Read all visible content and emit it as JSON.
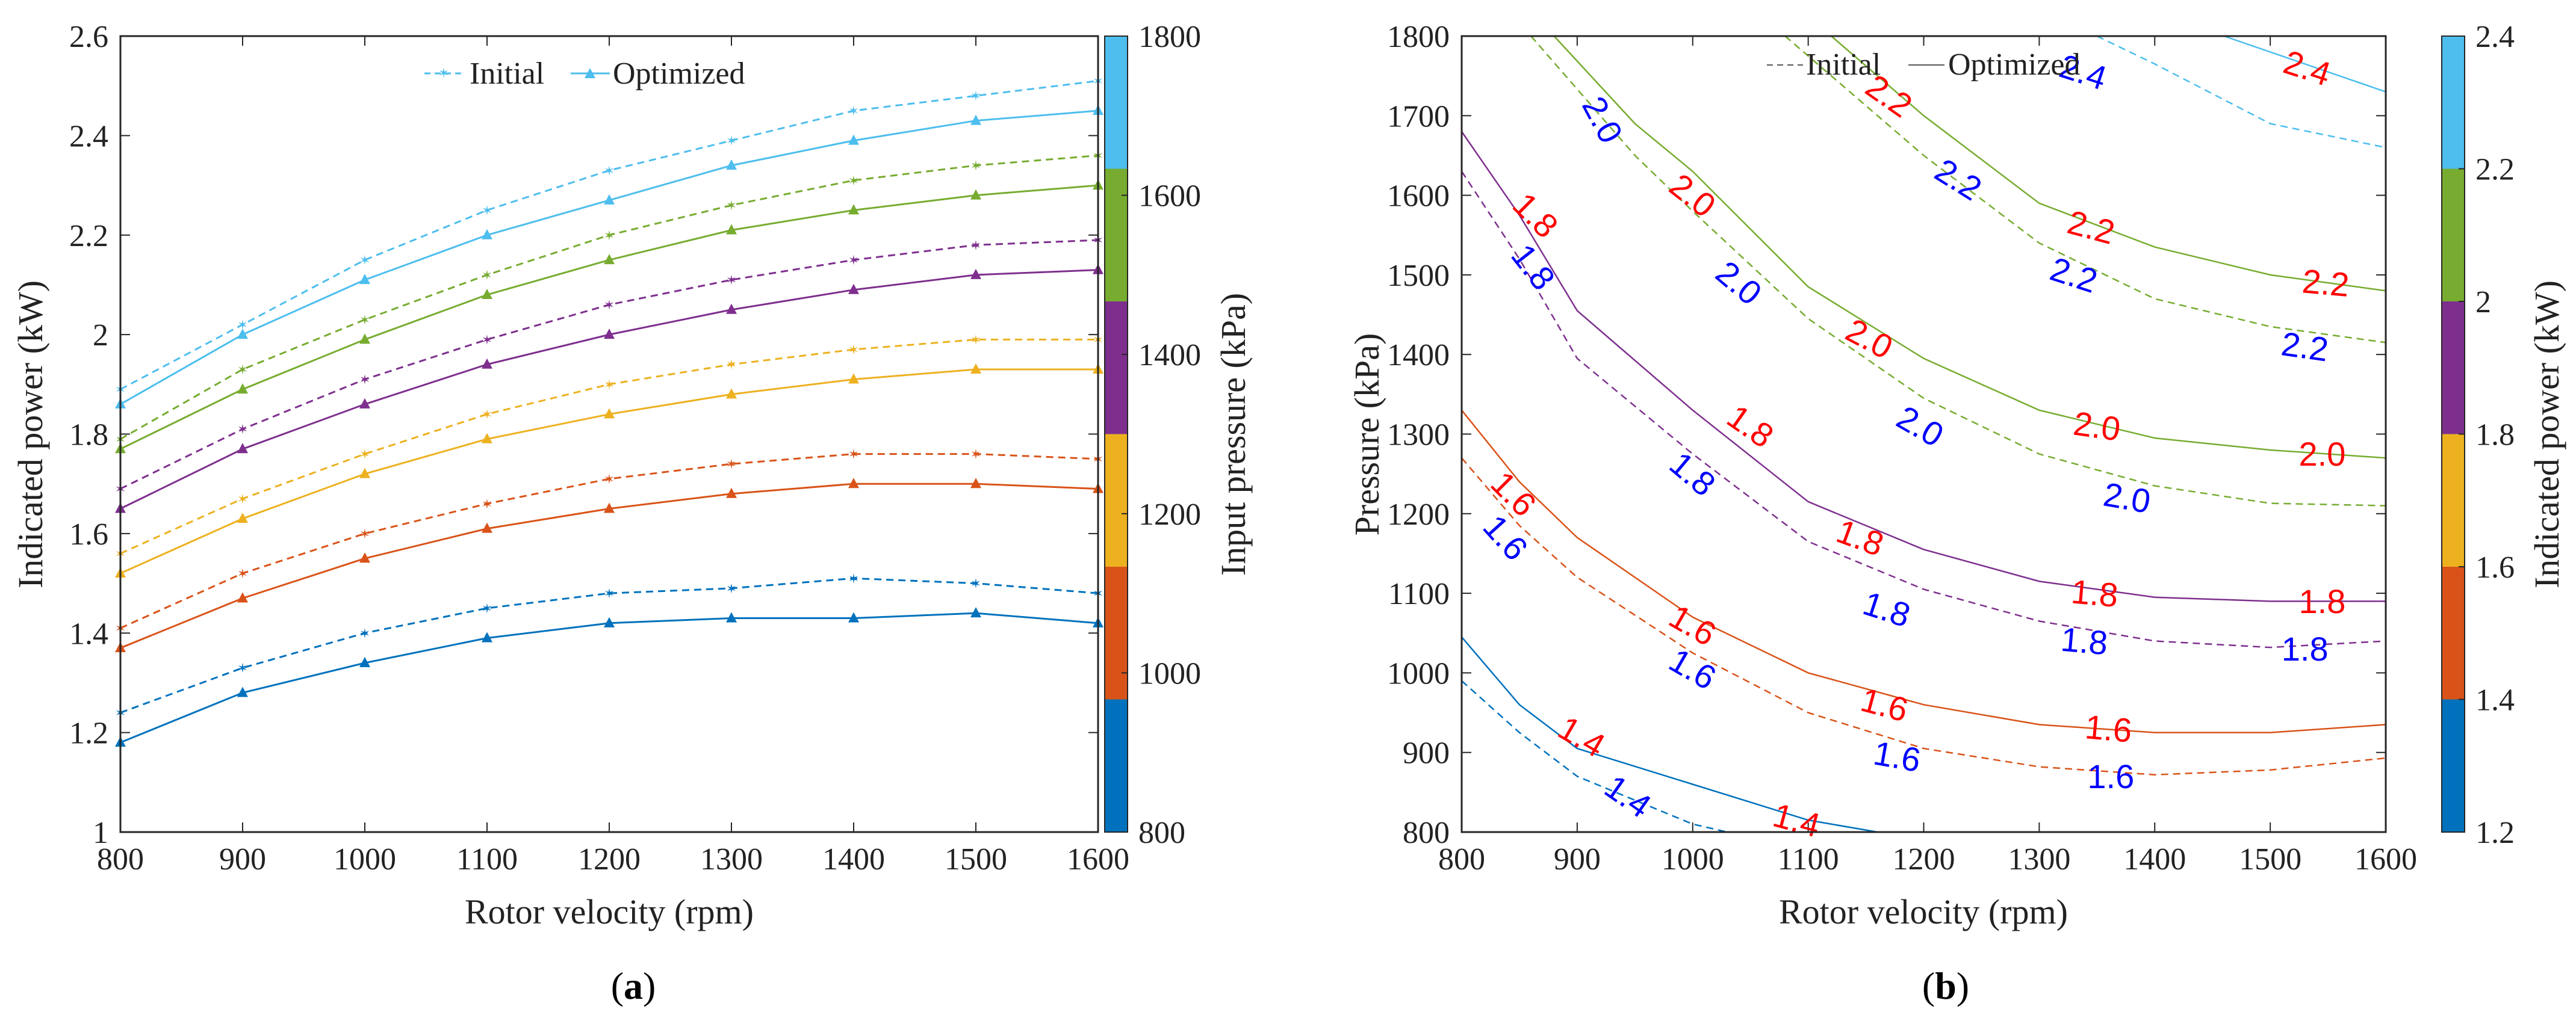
{
  "colors": {
    "level_colors": [
      "#0072BD",
      "#D95319",
      "#EDB120",
      "#7E2F8E",
      "#77AC30",
      "#4DBEEE"
    ],
    "initial_label_color": "#0000FF",
    "optimized_label_color": "#FF0000",
    "axis_color": "#262626"
  },
  "chart_data": [
    {
      "id": "a",
      "panel_label_open": "(",
      "panel_label_letter": "a",
      "panel_label_close": ")",
      "type": "line",
      "xlabel": "Rotor velocity (rpm)",
      "ylabel": "Indicated power (kW)",
      "xlim": [
        800,
        1600
      ],
      "ylim": [
        1,
        2.6
      ],
      "x_ticks": [
        800,
        900,
        1000,
        1100,
        1200,
        1300,
        1400,
        1500,
        1600
      ],
      "y_ticks": [
        1,
        1.2,
        1.4,
        1.6,
        1.8,
        2,
        2.2,
        2.4,
        2.6
      ],
      "y_tick_labels": [
        "1",
        "1.2",
        "1.4",
        "1.6",
        "1.8",
        "2",
        "2.2",
        "2.4",
        "2.6"
      ],
      "legend": {
        "placement": "top-center",
        "entries": [
          "Initial",
          "Optimized"
        ]
      },
      "colorbar": {
        "label": "Input pressure (kPa)",
        "range": [
          800,
          1800
        ],
        "ticks": [
          "800",
          "1000",
          "1200",
          "1400",
          "1600",
          "1800"
        ],
        "bands": 6
      },
      "x": [
        800,
        900,
        1000,
        1100,
        1200,
        1300,
        1400,
        1500,
        1600
      ],
      "series": [
        {
          "name": "Initial",
          "pressure_level": 1,
          "values": [
            1.24,
            1.33,
            1.4,
            1.45,
            1.48,
            1.49,
            1.51,
            1.5,
            1.48
          ]
        },
        {
          "name": "Optimized",
          "pressure_level": 1,
          "values": [
            1.18,
            1.28,
            1.34,
            1.39,
            1.42,
            1.43,
            1.43,
            1.44,
            1.42
          ]
        },
        {
          "name": "Initial",
          "pressure_level": 2,
          "values": [
            1.41,
            1.52,
            1.6,
            1.66,
            1.71,
            1.74,
            1.76,
            1.76,
            1.75
          ]
        },
        {
          "name": "Optimized",
          "pressure_level": 2,
          "values": [
            1.37,
            1.47,
            1.55,
            1.61,
            1.65,
            1.68,
            1.7,
            1.7,
            1.69
          ]
        },
        {
          "name": "Initial",
          "pressure_level": 3,
          "values": [
            1.56,
            1.67,
            1.76,
            1.84,
            1.9,
            1.94,
            1.97,
            1.99,
            1.99
          ]
        },
        {
          "name": "Optimized",
          "pressure_level": 3,
          "values": [
            1.52,
            1.63,
            1.72,
            1.79,
            1.84,
            1.88,
            1.91,
            1.93,
            1.93
          ]
        },
        {
          "name": "Initial",
          "pressure_level": 4,
          "values": [
            1.69,
            1.81,
            1.91,
            1.99,
            2.06,
            2.11,
            2.15,
            2.18,
            2.19
          ]
        },
        {
          "name": "Optimized",
          "pressure_level": 4,
          "values": [
            1.65,
            1.77,
            1.86,
            1.94,
            2.0,
            2.05,
            2.09,
            2.12,
            2.13
          ]
        },
        {
          "name": "Initial",
          "pressure_level": 5,
          "values": [
            1.79,
            1.93,
            2.03,
            2.12,
            2.2,
            2.26,
            2.31,
            2.34,
            2.36
          ]
        },
        {
          "name": "Optimized",
          "pressure_level": 5,
          "values": [
            1.77,
            1.89,
            1.99,
            2.08,
            2.15,
            2.21,
            2.25,
            2.28,
            2.3
          ]
        },
        {
          "name": "Initial",
          "pressure_level": 6,
          "values": [
            1.89,
            2.02,
            2.15,
            2.25,
            2.33,
            2.39,
            2.45,
            2.48,
            2.51
          ]
        },
        {
          "name": "Optimized",
          "pressure_level": 6,
          "values": [
            1.86,
            2.0,
            2.11,
            2.2,
            2.27,
            2.34,
            2.39,
            2.43,
            2.45
          ]
        }
      ]
    },
    {
      "id": "b",
      "panel_label_open": "(",
      "panel_label_letter": "b",
      "panel_label_close": ")",
      "type": "contour",
      "xlabel": "Rotor velocity (rpm)",
      "ylabel": "Pressure (kPa)",
      "xlim": [
        800,
        1600
      ],
      "ylim": [
        800,
        1800
      ],
      "x_ticks": [
        800,
        900,
        1000,
        1100,
        1200,
        1300,
        1400,
        1500,
        1600
      ],
      "y_ticks": [
        800,
        900,
        1000,
        1100,
        1200,
        1300,
        1400,
        1500,
        1600,
        1700,
        1800
      ],
      "legend": {
        "placement": "top-center",
        "entries": [
          "Initial",
          "Optimized"
        ]
      },
      "colorbar": {
        "label": "Indicated power (kW)",
        "range": [
          1.2,
          2.4
        ],
        "ticks": [
          "1.2",
          "1.4",
          "1.6",
          "1.8",
          "2",
          "2.2",
          "2.4"
        ],
        "bands": 6
      },
      "contours": [
        {
          "name": "Optimized",
          "level": 1.4,
          "color_index": 0,
          "points": [
            [
              800,
              1045
            ],
            [
              850,
              960
            ],
            [
              900,
              905
            ],
            [
              1000,
              860
            ],
            [
              1100,
              815
            ],
            [
              1160,
              800
            ]
          ]
        },
        {
          "name": "Initial",
          "level": 1.4,
          "color_index": 0,
          "points": [
            [
              800,
              990
            ],
            [
              850,
              925
            ],
            [
              900,
              870
            ],
            [
              1000,
              810
            ],
            [
              1030,
              800
            ]
          ]
        },
        {
          "name": "Optimized",
          "level": 1.6,
          "color_index": 1,
          "points": [
            [
              800,
              1330
            ],
            [
              850,
              1240
            ],
            [
              900,
              1170
            ],
            [
              1000,
              1070
            ],
            [
              1100,
              1000
            ],
            [
              1200,
              960
            ],
            [
              1300,
              935
            ],
            [
              1400,
              925
            ],
            [
              1500,
              925
            ],
            [
              1600,
              935
            ]
          ]
        },
        {
          "name": "Initial",
          "level": 1.6,
          "color_index": 1,
          "points": [
            [
              800,
              1270
            ],
            [
              850,
              1185
            ],
            [
              900,
              1120
            ],
            [
              1000,
              1025
            ],
            [
              1100,
              950
            ],
            [
              1200,
              905
            ],
            [
              1300,
              882
            ],
            [
              1400,
              872
            ],
            [
              1500,
              878
            ],
            [
              1600,
              893
            ]
          ]
        },
        {
          "name": "Optimized",
          "level": 1.8,
          "color_index": 3,
          "points": [
            [
              800,
              1680
            ],
            [
              850,
              1575
            ],
            [
              900,
              1455
            ],
            [
              1000,
              1330
            ],
            [
              1100,
              1215
            ],
            [
              1200,
              1155
            ],
            [
              1300,
              1115
            ],
            [
              1400,
              1095
            ],
            [
              1500,
              1090
            ],
            [
              1600,
              1090
            ]
          ]
        },
        {
          "name": "Initial",
          "level": 1.8,
          "color_index": 3,
          "points": [
            [
              800,
              1630
            ],
            [
              850,
              1520
            ],
            [
              900,
              1395
            ],
            [
              1000,
              1275
            ],
            [
              1100,
              1165
            ],
            [
              1200,
              1105
            ],
            [
              1300,
              1065
            ],
            [
              1400,
              1040
            ],
            [
              1500,
              1032
            ],
            [
              1600,
              1040
            ]
          ]
        },
        {
          "name": "Optimized",
          "level": 2.0,
          "color_index": 4,
          "points": [
            [
              880,
              1800
            ],
            [
              950,
              1690
            ],
            [
              1000,
              1630
            ],
            [
              1100,
              1485
            ],
            [
              1200,
              1395
            ],
            [
              1300,
              1330
            ],
            [
              1400,
              1295
            ],
            [
              1500,
              1280
            ],
            [
              1600,
              1270
            ]
          ]
        },
        {
          "name": "Initial",
          "level": 2.0,
          "color_index": 4,
          "points": [
            [
              860,
              1800
            ],
            [
              950,
              1650
            ],
            [
              1000,
              1580
            ],
            [
              1100,
              1445
            ],
            [
              1200,
              1345
            ],
            [
              1300,
              1275
            ],
            [
              1400,
              1235
            ],
            [
              1500,
              1213
            ],
            [
              1600,
              1210
            ]
          ]
        },
        {
          "name": "Optimized",
          "level": 2.2,
          "color_index": 4,
          "points": [
            [
              1120,
              1800
            ],
            [
              1200,
              1700
            ],
            [
              1300,
              1590
            ],
            [
              1400,
              1535
            ],
            [
              1500,
              1500
            ],
            [
              1600,
              1480
            ]
          ]
        },
        {
          "name": "Initial",
          "level": 2.2,
          "color_index": 4,
          "points": [
            [
              1080,
              1800
            ],
            [
              1200,
              1650
            ],
            [
              1300,
              1540
            ],
            [
              1400,
              1470
            ],
            [
              1500,
              1435
            ],
            [
              1600,
              1415
            ]
          ]
        },
        {
          "name": "Optimized",
          "level": 2.4,
          "color_index": 5,
          "points": [
            [
              1460,
              1800
            ],
            [
              1500,
              1780
            ],
            [
              1550,
              1755
            ],
            [
              1600,
              1730
            ]
          ]
        },
        {
          "name": "Initial",
          "level": 2.4,
          "color_index": 5,
          "points": [
            [
              1350,
              1800
            ],
            [
              1400,
              1765
            ],
            [
              1500,
              1690
            ],
            [
              1600,
              1660
            ]
          ]
        }
      ],
      "contour_labels": [
        {
          "text": "2.0",
          "x": 922,
          "y": 1695,
          "rot": 62,
          "kind": "initial"
        },
        {
          "text": "1.8",
          "x": 862,
          "y": 1510,
          "rot": 52,
          "kind": "initial"
        },
        {
          "text": "2.0",
          "x": 1040,
          "y": 1490,
          "rot": 40,
          "kind": "initial"
        },
        {
          "text": "1.8",
          "x": 1000,
          "y": 1250,
          "rot": 40,
          "kind": "initial"
        },
        {
          "text": "2.2",
          "x": 1230,
          "y": 1620,
          "rot": 32,
          "kind": "initial"
        },
        {
          "text": "2.0",
          "x": 1197,
          "y": 1310,
          "rot": 30,
          "kind": "initial"
        },
        {
          "text": "2.2",
          "x": 1330,
          "y": 1500,
          "rot": 18,
          "kind": "initial"
        },
        {
          "text": "2.4",
          "x": 1338,
          "y": 1755,
          "rot": 18,
          "kind": "initial"
        },
        {
          "text": "2.2",
          "x": 1530,
          "y": 1410,
          "rot": 8,
          "kind": "initial"
        },
        {
          "text": "2.0",
          "x": 1376,
          "y": 1220,
          "rot": 10,
          "kind": "initial"
        },
        {
          "text": "1.6",
          "x": 838,
          "y": 1170,
          "rot": 48,
          "kind": "initial"
        },
        {
          "text": "1.8",
          "x": 1168,
          "y": 1080,
          "rot": 18,
          "kind": "initial"
        },
        {
          "text": "1.8",
          "x": 1339,
          "y": 1040,
          "rot": 5,
          "kind": "initial"
        },
        {
          "text": "1.8",
          "x": 1530,
          "y": 1030,
          "rot": 0,
          "kind": "initial"
        },
        {
          "text": "1.6",
          "x": 1000,
          "y": 1005,
          "rot": 30,
          "kind": "initial"
        },
        {
          "text": "1.6",
          "x": 1177,
          "y": 895,
          "rot": 10,
          "kind": "initial"
        },
        {
          "text": "1.6",
          "x": 1362,
          "y": 870,
          "rot": 0,
          "kind": "initial"
        },
        {
          "text": "1.4",
          "x": 944,
          "y": 845,
          "rot": 35,
          "kind": "initial"
        },
        {
          "text": "1.8",
          "x": 864,
          "y": 1575,
          "rot": 45,
          "kind": "optimized"
        },
        {
          "text": "2.0",
          "x": 1000,
          "y": 1600,
          "rot": 38,
          "kind": "optimized"
        },
        {
          "text": "2.2",
          "x": 1170,
          "y": 1725,
          "rot": 35,
          "kind": "optimized"
        },
        {
          "text": "2.4",
          "x": 1532,
          "y": 1760,
          "rot": 18,
          "kind": "optimized"
        },
        {
          "text": "1.6",
          "x": 845,
          "y": 1225,
          "rot": 45,
          "kind": "optimized"
        },
        {
          "text": "1.8",
          "x": 1050,
          "y": 1310,
          "rot": 35,
          "kind": "optimized"
        },
        {
          "text": "2.0",
          "x": 1153,
          "y": 1420,
          "rot": 28,
          "kind": "optimized"
        },
        {
          "text": "2.2",
          "x": 1345,
          "y": 1560,
          "rot": 15,
          "kind": "optimized"
        },
        {
          "text": "2.2",
          "x": 1548,
          "y": 1490,
          "rot": 5,
          "kind": "optimized"
        },
        {
          "text": "2.0",
          "x": 1350,
          "y": 1310,
          "rot": 8,
          "kind": "optimized"
        },
        {
          "text": "2.0",
          "x": 1545,
          "y": 1275,
          "rot": 0,
          "kind": "optimized"
        },
        {
          "text": "1.8",
          "x": 1145,
          "y": 1170,
          "rot": 20,
          "kind": "optimized"
        },
        {
          "text": "1.8",
          "x": 1348,
          "y": 1100,
          "rot": 5,
          "kind": "optimized"
        },
        {
          "text": "1.8",
          "x": 1545,
          "y": 1090,
          "rot": 0,
          "kind": "optimized"
        },
        {
          "text": "1.6",
          "x": 1000,
          "y": 1060,
          "rot": 30,
          "kind": "optimized"
        },
        {
          "text": "1.6",
          "x": 1166,
          "y": 960,
          "rot": 15,
          "kind": "optimized"
        },
        {
          "text": "1.6",
          "x": 1360,
          "y": 930,
          "rot": 5,
          "kind": "optimized"
        },
        {
          "text": "1.4",
          "x": 904,
          "y": 920,
          "rot": 30,
          "kind": "optimized"
        },
        {
          "text": "1.4",
          "x": 1090,
          "y": 815,
          "rot": 15,
          "kind": "optimized"
        }
      ]
    }
  ]
}
